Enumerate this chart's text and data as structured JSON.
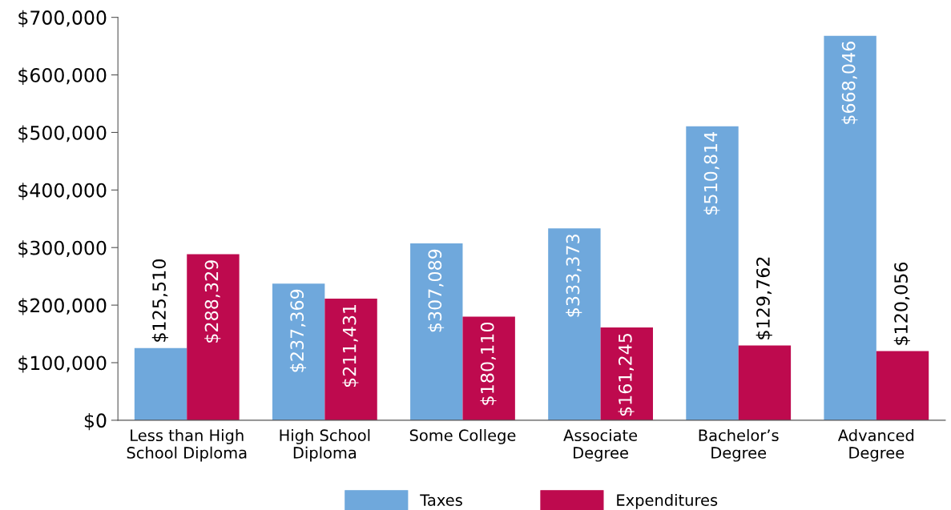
{
  "chart_data": {
    "type": "bar",
    "categories": [
      "Less than High\nSchool Diploma",
      "High School\nDiploma",
      "Some College",
      "Associate\nDegree",
      "Bachelor’s\nDegree",
      "Advanced\nDegree"
    ],
    "series": [
      {
        "name": "Taxes",
        "color": "#6fa8dc",
        "values": [
          125510,
          237369,
          307089,
          333373,
          510814,
          668046
        ],
        "value_labels": [
          "$125,510",
          "$237,369",
          "$307,089",
          "$333,373",
          "$510,814",
          "$668,046"
        ]
      },
      {
        "name": "Expenditures",
        "color": "#be0a4e",
        "values": [
          288329,
          211431,
          180110,
          161245,
          129762,
          120056
        ],
        "value_labels": [
          "$288,329",
          "$211,431",
          "$180,110",
          "$161,245",
          "$129,762",
          "$120,056"
        ]
      }
    ],
    "ylim": [
      0,
      700000
    ],
    "yticks": [
      {
        "value": 0,
        "label": "$0"
      },
      {
        "value": 100000,
        "label": "$100,000"
      },
      {
        "value": 200000,
        "label": "$200,000"
      },
      {
        "value": 300000,
        "label": "$300,000"
      },
      {
        "value": 400000,
        "label": "$400,000"
      },
      {
        "value": 500000,
        "label": "$500,000"
      },
      {
        "value": 600000,
        "label": "$600,000"
      },
      {
        "value": 700000,
        "label": "$700,000"
      }
    ],
    "grid": false,
    "legend": "bottom"
  }
}
